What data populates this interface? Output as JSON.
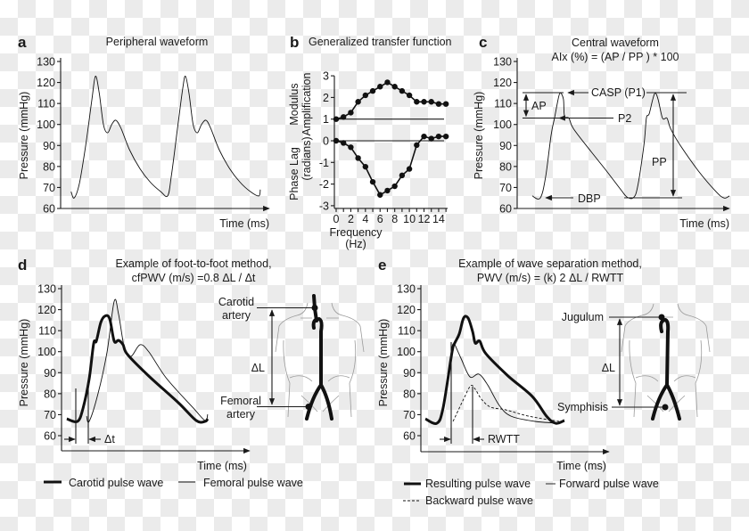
{
  "panels": {
    "a": {
      "letter": "a",
      "title": "Peripheral waveform"
    },
    "b": {
      "letter": "b",
      "title": "Generalized transfer function"
    },
    "c": {
      "letter": "c",
      "title_lines": [
        "Central waveform",
        "AIx (%) = (AP / PP ) * 100"
      ],
      "annotations": {
        "casp": "CASP (P1)",
        "p2": "P2",
        "ap": "AP",
        "pp": "PP",
        "dbp": "DBP"
      }
    },
    "d": {
      "letter": "d",
      "title_lines": [
        "Example of foot-to-foot method,",
        "cfPWV (m/s) =0.8 ΔL / Δt"
      ],
      "annotations": {
        "carotid": [
          "Carotid",
          "artery"
        ],
        "femoral": [
          "Femoral",
          "artery"
        ],
        "delta_l": "ΔL",
        "delta_t": "Δt"
      }
    },
    "e": {
      "letter": "e",
      "title_lines": [
        "Example of wave separation method,",
        "PWV (m/s) = (k) 2 ΔL / RWTT"
      ],
      "annotations": {
        "jugulum": "Jugulum",
        "symphisis": "Symphisis",
        "delta_l": "ΔL",
        "rwtt": "RWTT"
      }
    }
  },
  "chart_data": [
    {
      "panel": "a",
      "type": "line",
      "title": "Peripheral waveform",
      "xlabel": "Time (ms)",
      "ylabel": "Pressure (mmHg)",
      "ylim": [
        60,
        130
      ],
      "yticks": [
        60,
        70,
        80,
        90,
        100,
        110,
        120,
        130
      ],
      "grid": false,
      "series": [
        {
          "style": "thin",
          "points": [
            [
              5,
              68
            ],
            [
              6.5,
              65
            ],
            [
              9,
              72
            ],
            [
              12,
              90
            ],
            [
              15,
              112
            ],
            [
              16.7,
              123
            ],
            [
              18.5,
              115
            ],
            [
              20.5,
              100
            ],
            [
              22.5,
              96
            ],
            [
              24.5,
              100
            ],
            [
              26.5,
              102
            ],
            [
              29,
              98
            ],
            [
              33,
              88
            ],
            [
              38,
              79
            ],
            [
              43,
              72.5
            ],
            [
              48,
              68
            ],
            [
              51.3,
              66
            ],
            [
              53,
              75
            ],
            [
              56,
              98
            ],
            [
              58.5,
              117
            ],
            [
              59.8,
              123
            ],
            [
              61.5,
              115
            ],
            [
              63.5,
              100
            ],
            [
              65.5,
              96
            ],
            [
              67.5,
              100
            ],
            [
              69.7,
              102
            ],
            [
              72,
              98
            ],
            [
              76,
              88
            ],
            [
              81,
              79
            ],
            [
              86,
              72.5
            ],
            [
              91,
              68
            ],
            [
              95,
              66
            ],
            [
              95.7,
              69
            ]
          ]
        }
      ]
    },
    {
      "panel": "b",
      "type": "line",
      "title": "Generalized transfer function",
      "xlabel_lines": [
        "Frequency",
        "(Hz)"
      ],
      "ylabel_top": [
        "Modulus",
        "Amplification"
      ],
      "ylabel_bottom": [
        "Phase Lag",
        "(radians)"
      ],
      "xlim": [
        0,
        15
      ],
      "ylim": [
        -3,
        3
      ],
      "xticks": [
        0,
        2,
        4,
        6,
        8,
        10,
        12,
        14
      ],
      "yticks": [
        -3,
        -2,
        -1,
        0,
        1,
        2,
        3
      ],
      "reference_lines": [
        1,
        0
      ],
      "grid": false,
      "x": [
        0,
        1,
        2,
        3,
        4,
        5,
        6,
        7,
        8,
        9,
        10,
        11,
        12,
        13,
        14,
        15
      ],
      "series": [
        {
          "values": [
            1.0,
            1.1,
            1.3,
            1.8,
            2.1,
            2.3,
            2.5,
            2.7,
            2.5,
            2.3,
            2.1,
            1.8,
            1.8,
            1.8,
            1.7,
            1.7
          ]
        },
        {
          "values": [
            0,
            -0.1,
            -0.3,
            -0.8,
            -1.2,
            -1.9,
            -2.5,
            -2.3,
            -2.1,
            -1.6,
            -1.3,
            -0.2,
            0.2,
            0.1,
            0.2,
            0.2
          ]
        }
      ]
    },
    {
      "panel": "c",
      "type": "line",
      "title": "Central waveform",
      "xlabel": "Time (ms)",
      "ylabel": "Pressure (mmHg)",
      "ylim": [
        60,
        130
      ],
      "yticks": [
        60,
        70,
        80,
        90,
        100,
        110,
        120,
        130
      ],
      "grid": false,
      "series": [
        {
          "style": "thin",
          "points": [
            [
              7.1,
              66
            ],
            [
              10.9,
              65
            ],
            [
              13.4,
              75
            ],
            [
              16,
              95
            ],
            [
              17.6,
              103
            ],
            [
              18.9,
              110
            ],
            [
              20.2,
              115
            ],
            [
              21.8,
              112
            ],
            [
              22.3,
              104
            ],
            [
              24.4,
              103
            ],
            [
              26.5,
              98
            ],
            [
              34.9,
              87
            ],
            [
              42,
              78
            ],
            [
              49.2,
              68.5
            ],
            [
              51.7,
              65.5
            ],
            [
              54.6,
              65
            ],
            [
              56.7,
              70
            ],
            [
              59.7,
              90
            ],
            [
              60.9,
              103
            ],
            [
              62.2,
              105
            ],
            [
              63.9,
              112
            ],
            [
              65.1,
              115
            ],
            [
              66.4,
              112
            ],
            [
              68.5,
              103
            ],
            [
              70.6,
              103
            ],
            [
              72.3,
              98
            ],
            [
              76.9,
              90
            ],
            [
              85.3,
              78
            ],
            [
              93.7,
              68
            ],
            [
              97.5,
              65
            ],
            [
              100,
              66
            ]
          ]
        }
      ]
    },
    {
      "panel": "d",
      "type": "line",
      "xlabel": "Time (ms)",
      "ylabel": "Pressure (mmHg)",
      "ylim": [
        60,
        130
      ],
      "yticks": [
        60,
        70,
        80,
        90,
        100,
        110,
        120,
        130
      ],
      "grid": false,
      "legend": "bottom",
      "series": [
        {
          "name": "Carotid pulse wave",
          "style": "thick",
          "points": [
            [
              2.8,
              68
            ],
            [
              8.5,
              66.8
            ],
            [
              11.4,
              73
            ],
            [
              14.7,
              87
            ],
            [
              17.1,
              104
            ],
            [
              18.5,
              105
            ],
            [
              20.9,
              114
            ],
            [
              23.2,
              117
            ],
            [
              25.6,
              115.6
            ],
            [
              28,
              105
            ],
            [
              30.3,
              105.4
            ],
            [
              32.7,
              103.3
            ],
            [
              35.1,
              98.6
            ],
            [
              46.4,
              88.4
            ],
            [
              62.1,
              75.7
            ],
            [
              71.6,
              67.2
            ],
            [
              76.3,
              66.8
            ],
            [
              77.7,
              68
            ]
          ]
        },
        {
          "name": "Femoral pulse wave",
          "style": "thin",
          "points": [
            [
              13.3,
              69.3
            ],
            [
              14.7,
              66.8
            ],
            [
              19.4,
              80
            ],
            [
              24.2,
              99.9
            ],
            [
              28,
              124
            ],
            [
              30.3,
              118
            ],
            [
              33.6,
              101
            ],
            [
              37,
              97.8
            ],
            [
              41.7,
              103.3
            ],
            [
              46.4,
              99.9
            ],
            [
              55.9,
              87.2
            ],
            [
              70.1,
              73.1
            ],
            [
              76.3,
              67.2
            ],
            [
              77.7,
              70.2
            ]
          ]
        }
      ]
    },
    {
      "panel": "e",
      "type": "line",
      "xlabel": "Time (ms)",
      "ylabel": "Pressure (mmHg)",
      "ylim": [
        60,
        130
      ],
      "yticks": [
        60,
        70,
        80,
        90,
        100,
        110,
        120,
        130
      ],
      "grid": false,
      "legend": "bottom",
      "series": [
        {
          "name": "Resulting pulse wave",
          "style": "thick",
          "points": [
            [
              2.4,
              68
            ],
            [
              8.5,
              65.9
            ],
            [
              11.8,
              73.1
            ],
            [
              16.6,
              99.9
            ],
            [
              18,
              104.1
            ],
            [
              20.4,
              108.4
            ],
            [
              22.7,
              116
            ],
            [
              25.1,
              116
            ],
            [
              27.5,
              109.6
            ],
            [
              28.9,
              104.1
            ],
            [
              31.3,
              105
            ],
            [
              34.6,
              99
            ],
            [
              46.4,
              88.4
            ],
            [
              59.2,
              78.7
            ],
            [
              66.8,
              69.3
            ],
            [
              71.6,
              65.9
            ],
            [
              76.3,
              67.2
            ]
          ]
        },
        {
          "name": "Forward pulse wave",
          "style": "thin",
          "points": [
            [
              17.5,
              104.5
            ],
            [
              21.3,
              96.9
            ],
            [
              26.1,
              88
            ],
            [
              30.8,
              89.3
            ],
            [
              35.5,
              84.2
            ],
            [
              41.7,
              74.4
            ],
            [
              47.9,
              69.3
            ],
            [
              60.7,
              66.8
            ],
            [
              73.5,
              65.9
            ]
          ]
        },
        {
          "name": "Backward pulse wave",
          "style": "dashed",
          "points": [
            [
              17.1,
              66.8
            ],
            [
              22.7,
              77.4
            ],
            [
              26.5,
              83.8
            ],
            [
              28.9,
              82.1
            ],
            [
              32.2,
              77.4
            ],
            [
              37,
              73.6
            ],
            [
              45,
              72.3
            ],
            [
              57.3,
              69.3
            ],
            [
              73.5,
              66.8
            ]
          ]
        }
      ]
    }
  ]
}
